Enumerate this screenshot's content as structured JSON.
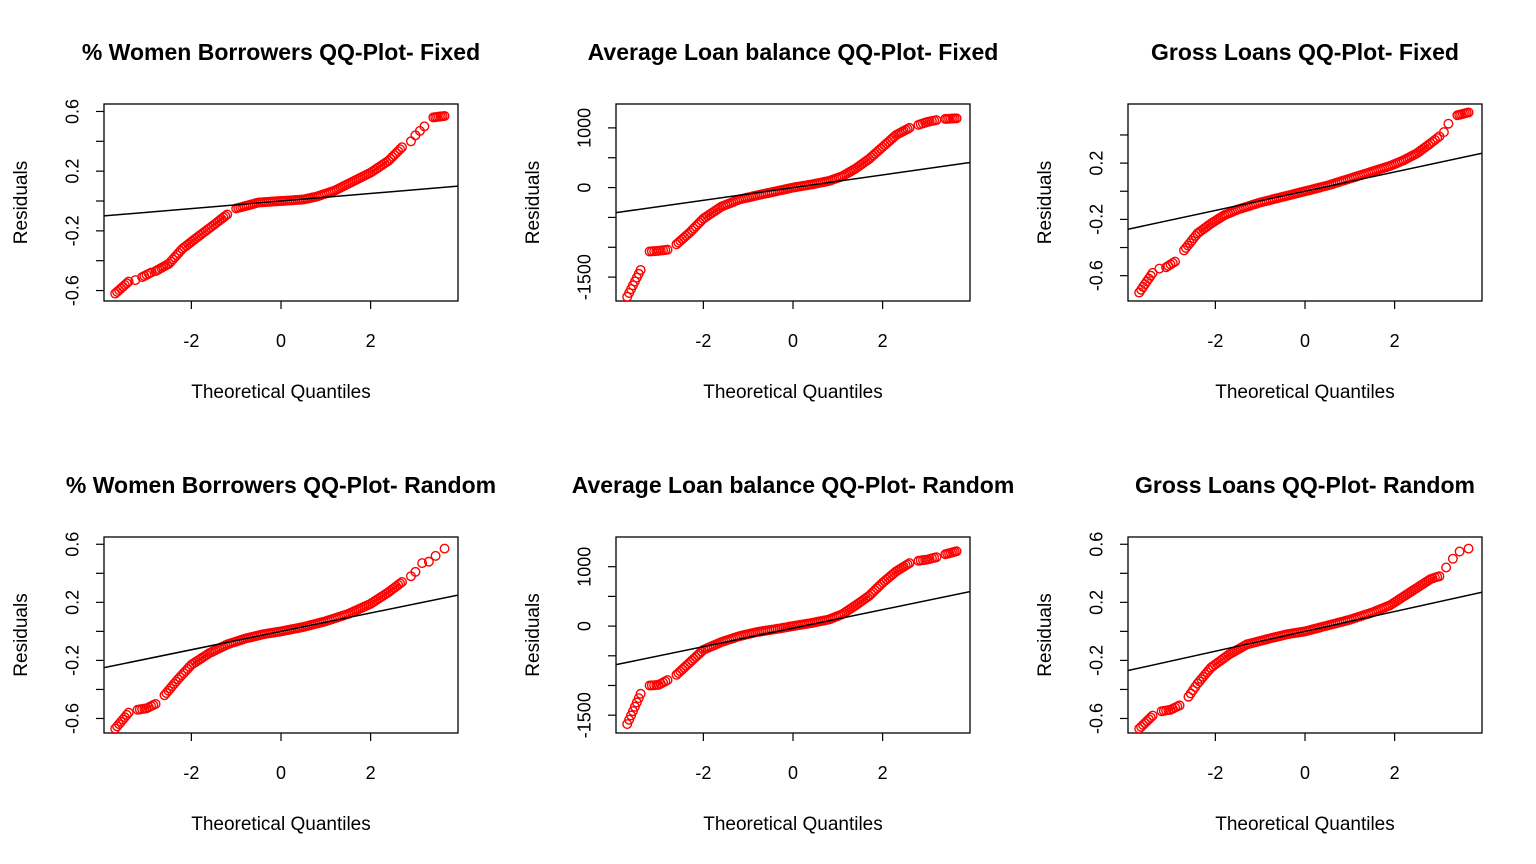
{
  "chart_data": [
    {
      "type": "scatter",
      "title": "% Women Borrowers QQ-Plot- Fixed",
      "xlabel": "Theoretical Quantiles",
      "ylabel": "Residuals",
      "xlim": [
        -3.95,
        3.95
      ],
      "ylim": [
        -0.67,
        0.65
      ],
      "xticks": [
        -2,
        0,
        2
      ],
      "yticks": [
        -0.6,
        -0.4,
        -0.2,
        0.0,
        0.2,
        0.4,
        0.6
      ],
      "ytick_labels": [
        "-0.6",
        "",
        "-0.2",
        "",
        "0.2",
        "",
        "0.6"
      ],
      "reference_line": {
        "x": [
          -3.95,
          3.95
        ],
        "y": [
          -0.1,
          0.1
        ]
      },
      "points": {
        "x": [
          -3.7,
          -3.4,
          -3.25,
          -3.1,
          -2.9,
          -2.8,
          -2.5,
          -2.2,
          -1.9,
          -1.5,
          -1.2,
          -1.0,
          -0.5,
          0.0,
          0.5,
          0.8,
          1.2,
          1.6,
          2.0,
          2.4,
          2.7,
          2.9,
          3.0,
          3.1,
          3.2,
          3.4,
          3.65
        ],
        "y": [
          -0.62,
          -0.54,
          -0.53,
          -0.51,
          -0.48,
          -0.47,
          -0.42,
          -0.32,
          -0.25,
          -0.16,
          -0.09,
          -0.05,
          -0.01,
          0.0,
          0.01,
          0.03,
          0.07,
          0.13,
          0.19,
          0.27,
          0.36,
          0.4,
          0.44,
          0.47,
          0.5,
          0.56,
          0.57
        ]
      },
      "colors": {
        "points": "#ff0000",
        "line": "#000000"
      }
    },
    {
      "type": "scatter",
      "title": "Average Loan balance QQ-Plot- Fixed",
      "xlabel": "Theoretical Quantiles",
      "ylabel": "Residuals",
      "xlim": [
        -3.95,
        3.95
      ],
      "ylim": [
        -1900,
        1400
      ],
      "xticks": [
        -2,
        0,
        2
      ],
      "yticks": [
        -1500,
        -1000,
        -500,
        0,
        500,
        1000
      ],
      "ytick_labels": [
        "-1500",
        "",
        "",
        "0",
        "",
        "1000"
      ],
      "reference_line": {
        "x": [
          -3.95,
          3.95
        ],
        "y": [
          -420,
          420
        ]
      },
      "points": {
        "x": [
          -3.7,
          -3.4,
          -3.2,
          -3.0,
          -2.8,
          -2.6,
          -2.3,
          -2.0,
          -1.6,
          -1.2,
          -0.8,
          -0.3,
          0.0,
          0.4,
          0.8,
          1.1,
          1.4,
          1.7,
          2.0,
          2.3,
          2.6,
          2.8,
          3.0,
          3.2,
          3.4,
          3.65
        ],
        "y": [
          -1830,
          -1380,
          -1070,
          -1060,
          -1040,
          -950,
          -750,
          -520,
          -320,
          -200,
          -130,
          -50,
          0,
          50,
          110,
          190,
          320,
          480,
          680,
          880,
          1000,
          1050,
          1100,
          1130,
          1150,
          1160
        ]
      },
      "colors": {
        "points": "#ff0000",
        "line": "#000000"
      }
    },
    {
      "type": "scatter",
      "title": "Gross Loans QQ-Plot- Fixed",
      "xlabel": "Theoretical Quantiles",
      "ylabel": "Residuals",
      "xlim": [
        -3.95,
        3.95
      ],
      "ylim": [
        -0.78,
        0.62
      ],
      "xticks": [
        -2,
        0,
        2
      ],
      "yticks": [
        -0.6,
        -0.4,
        -0.2,
        0.0,
        0.2,
        0.4
      ],
      "ytick_labels": [
        "-0.6",
        "",
        "-0.2",
        "",
        "0.2",
        ""
      ],
      "reference_line": {
        "x": [
          -3.95,
          3.95
        ],
        "y": [
          -0.27,
          0.27
        ]
      },
      "points": {
        "x": [
          -3.7,
          -3.4,
          -3.25,
          -3.1,
          -2.9,
          -2.7,
          -2.4,
          -2.1,
          -1.8,
          -1.5,
          -1.0,
          -0.5,
          0.0,
          0.5,
          1.0,
          1.5,
          1.9,
          2.2,
          2.5,
          2.8,
          3.0,
          3.1,
          3.2,
          3.4,
          3.65
        ],
        "y": [
          -0.72,
          -0.58,
          -0.55,
          -0.54,
          -0.5,
          -0.42,
          -0.3,
          -0.23,
          -0.17,
          -0.13,
          -0.08,
          -0.04,
          0.0,
          0.04,
          0.09,
          0.14,
          0.18,
          0.22,
          0.27,
          0.34,
          0.39,
          0.42,
          0.48,
          0.54,
          0.56
        ]
      },
      "colors": {
        "points": "#ff0000",
        "line": "#000000"
      }
    },
    {
      "type": "scatter",
      "title": "% Women Borrowers QQ-Plot- Random",
      "xlabel": "Theoretical Quantiles",
      "ylabel": "Residuals",
      "xlim": [
        -3.95,
        3.95
      ],
      "ylim": [
        -0.7,
        0.65
      ],
      "xticks": [
        -2,
        0,
        2
      ],
      "yticks": [
        -0.6,
        -0.4,
        -0.2,
        0.0,
        0.2,
        0.4,
        0.6
      ],
      "ytick_labels": [
        "-0.6",
        "",
        "-0.2",
        "",
        "0.2",
        "",
        "0.6"
      ],
      "reference_line": {
        "x": [
          -3.95,
          3.95
        ],
        "y": [
          -0.25,
          0.25
        ]
      },
      "points": {
        "x": [
          -3.7,
          -3.4,
          -3.2,
          -3.0,
          -2.8,
          -2.6,
          -2.3,
          -2.0,
          -1.6,
          -1.2,
          -0.8,
          -0.4,
          0.0,
          0.5,
          1.0,
          1.5,
          2.0,
          2.4,
          2.7,
          2.9,
          3.0,
          3.15,
          3.3,
          3.45,
          3.65
        ],
        "y": [
          -0.67,
          -0.56,
          -0.54,
          -0.53,
          -0.5,
          -0.44,
          -0.33,
          -0.23,
          -0.15,
          -0.09,
          -0.05,
          -0.02,
          0.0,
          0.03,
          0.07,
          0.12,
          0.19,
          0.27,
          0.34,
          0.38,
          0.41,
          0.47,
          0.48,
          0.52,
          0.57
        ]
      },
      "colors": {
        "points": "#ff0000",
        "line": "#000000"
      }
    },
    {
      "type": "scatter",
      "title": "Average Loan balance QQ-Plot- Random",
      "xlabel": "Theoretical Quantiles",
      "ylabel": "Residuals",
      "xlim": [
        -3.95,
        3.95
      ],
      "ylim": [
        -1800,
        1500
      ],
      "xticks": [
        -2,
        0,
        2
      ],
      "yticks": [
        -1500,
        -1000,
        -500,
        0,
        500,
        1000
      ],
      "ytick_labels": [
        "-1500",
        "",
        "",
        "0",
        "",
        "1000"
      ],
      "reference_line": {
        "x": [
          -3.95,
          3.95
        ],
        "y": [
          -650,
          580
        ]
      },
      "points": {
        "x": [
          -3.7,
          -3.4,
          -3.2,
          -3.0,
          -2.8,
          -2.6,
          -2.3,
          -2.0,
          -1.6,
          -1.2,
          -0.8,
          -0.3,
          0.0,
          0.4,
          0.8,
          1.1,
          1.4,
          1.7,
          2.0,
          2.3,
          2.6,
          2.8,
          3.0,
          3.2,
          3.4,
          3.65
        ],
        "y": [
          -1650,
          -1140,
          -1000,
          -990,
          -910,
          -820,
          -610,
          -400,
          -270,
          -170,
          -100,
          -40,
          0,
          50,
          110,
          200,
          350,
          510,
          730,
          920,
          1060,
          1100,
          1120,
          1160,
          1210,
          1260
        ]
      },
      "colors": {
        "points": "#ff0000",
        "line": "#000000"
      }
    },
    {
      "type": "scatter",
      "title": "Gross Loans QQ-Plot- Random",
      "xlabel": "Theoretical Quantiles",
      "ylabel": "Residuals",
      "xlim": [
        -3.95,
        3.95
      ],
      "ylim": [
        -0.7,
        0.65
      ],
      "xticks": [
        -2,
        0,
        2
      ],
      "yticks": [
        -0.6,
        -0.4,
        -0.2,
        0.0,
        0.2,
        0.4,
        0.6
      ],
      "ytick_labels": [
        "-0.6",
        "",
        "-0.2",
        "",
        "0.2",
        "",
        "0.6"
      ],
      "reference_line": {
        "x": [
          -3.95,
          3.95
        ],
        "y": [
          -0.27,
          0.27
        ]
      },
      "points": {
        "x": [
          -3.7,
          -3.4,
          -3.2,
          -3.0,
          -2.8,
          -2.6,
          -2.4,
          -2.1,
          -1.7,
          -1.3,
          -0.8,
          -0.4,
          0.0,
          0.5,
          1.0,
          1.5,
          1.9,
          2.2,
          2.5,
          2.8,
          3.0,
          3.15,
          3.3,
          3.45,
          3.65
        ],
        "y": [
          -0.67,
          -0.58,
          -0.55,
          -0.54,
          -0.51,
          -0.45,
          -0.36,
          -0.25,
          -0.16,
          -0.09,
          -0.05,
          -0.02,
          0.0,
          0.04,
          0.08,
          0.13,
          0.18,
          0.24,
          0.3,
          0.36,
          0.38,
          0.44,
          0.5,
          0.55,
          0.57
        ]
      },
      "colors": {
        "points": "#ff0000",
        "line": "#000000"
      }
    }
  ]
}
